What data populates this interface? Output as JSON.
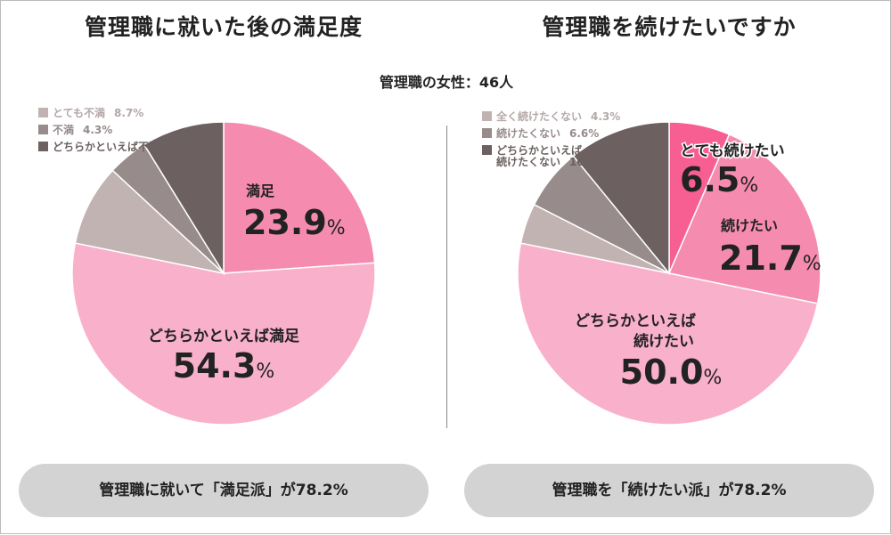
{
  "left_title": "管理職に就いた後の満足度",
  "right_title": "管理職を続けたいですか",
  "subtitle": "管理職の女性：46人",
  "summary_left": "管理職に就いて「満足派」が78.2%",
  "summary_right": "管理職を「続けたい派」が78.2%",
  "chart_data": [
    {
      "type": "pie",
      "title": "管理職に就いた後の満足度",
      "slices": [
        {
          "name": "満足",
          "value": 23.9,
          "color": "#f58cb0"
        },
        {
          "name": "どちらかといえば満足",
          "value": 54.3,
          "color": "#f9b0cb"
        },
        {
          "name": "とても不満",
          "value": 8.7,
          "color": "#c2b3b3"
        },
        {
          "name": "不満",
          "value": 4.3,
          "color": "#978b8b"
        },
        {
          "name": "どちらかといえば不満",
          "value": 8.8,
          "color": "#6c6060"
        }
      ]
    },
    {
      "type": "pie",
      "title": "管理職を続けたいですか",
      "slices": [
        {
          "name": "とても続けたい",
          "value": 6.5,
          "color": "#f75f93"
        },
        {
          "name": "続けたい",
          "value": 21.7,
          "color": "#f58cb0"
        },
        {
          "name": "どちらかといえば続けたい",
          "value": 50.0,
          "color": "#f9b0cb"
        },
        {
          "name": "全く続けたくない",
          "value": 4.3,
          "color": "#c2b3b3"
        },
        {
          "name": "続けたくない",
          "value": 6.6,
          "color": "#978b8b"
        },
        {
          "name": "どちらかといえば続けたくない",
          "value": 10.9,
          "color": "#6c6060"
        }
      ]
    }
  ]
}
